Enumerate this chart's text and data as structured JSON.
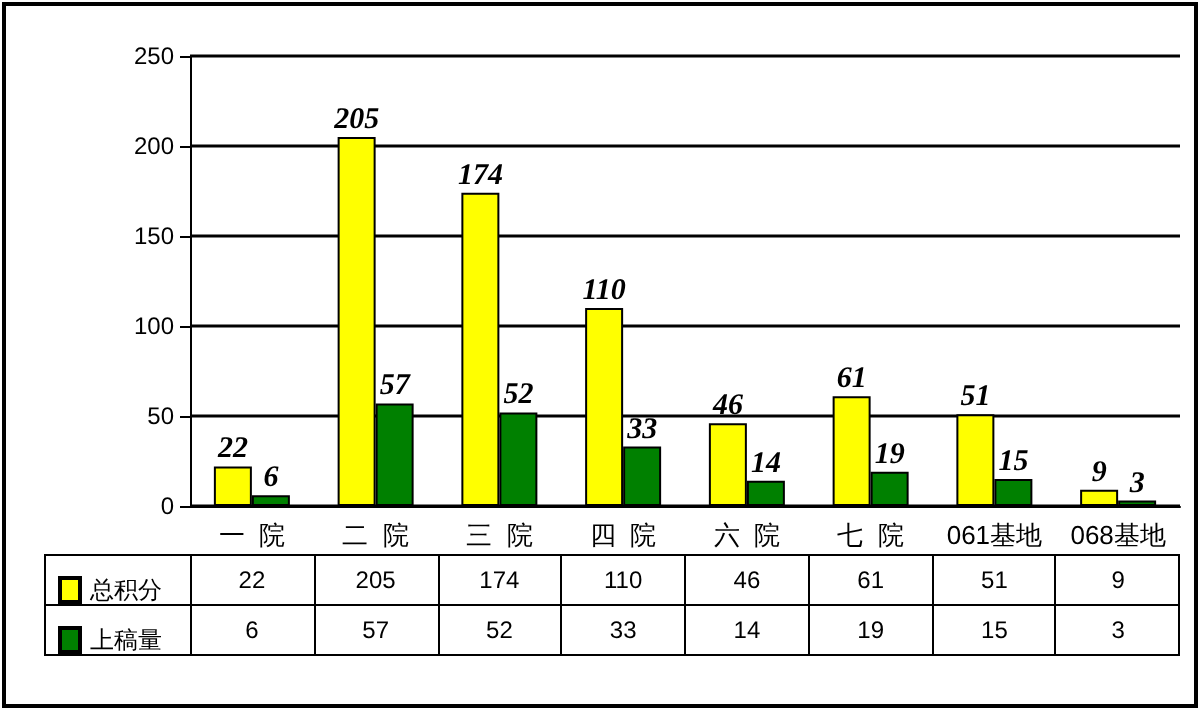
{
  "chart_data": {
    "type": "bar",
    "categories": [
      "一  院",
      "二  院",
      "三  院",
      "四  院",
      "六  院",
      "七  院",
      "061基地",
      "068基地"
    ],
    "series": [
      {
        "name": "总积分",
        "color": "#ffff00",
        "values": [
          22,
          205,
          174,
          110,
          46,
          61,
          51,
          9
        ]
      },
      {
        "name": "上稿量",
        "color": "#008000",
        "values": [
          6,
          57,
          52,
          33,
          14,
          19,
          15,
          3
        ]
      }
    ],
    "ylim": [
      0,
      250
    ],
    "yticks": [
      0,
      50,
      100,
      150,
      200,
      250
    ],
    "grid": "y",
    "legend": "bottom left",
    "data_labels": true,
    "annotations": [
      "22",
      "205",
      "174",
      "110",
      "46",
      "61",
      "51",
      "9",
      "6",
      "57",
      "52",
      "33",
      "14",
      "19",
      "15",
      "3"
    ]
  }
}
